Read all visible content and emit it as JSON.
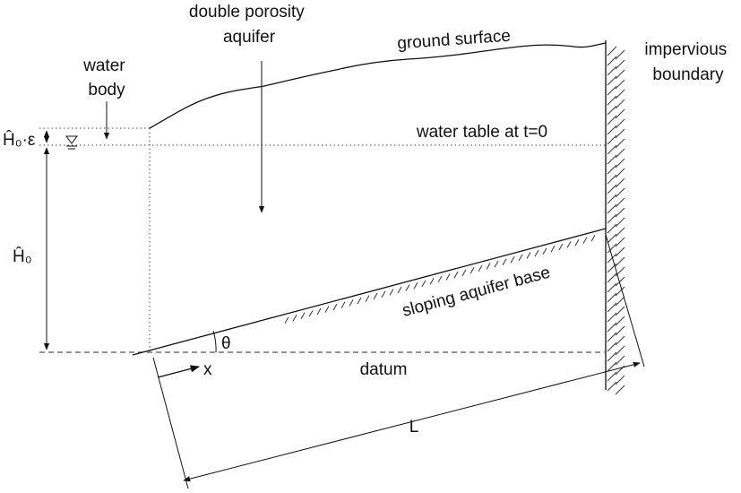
{
  "labels": {
    "water_body": [
      "water",
      "body"
    ],
    "aquifer": [
      "double porosity",
      "aquifer"
    ],
    "ground_surface": "ground surface",
    "impervious": [
      "impervious",
      "boundary"
    ],
    "water_table": "water table at t=0",
    "h0_eps": "Ĥ₀·ε",
    "h0": "Ĥ₀",
    "sloping_base": "sloping aquifer base",
    "theta": "θ",
    "x": "x",
    "datum": "datum",
    "L": "L"
  }
}
